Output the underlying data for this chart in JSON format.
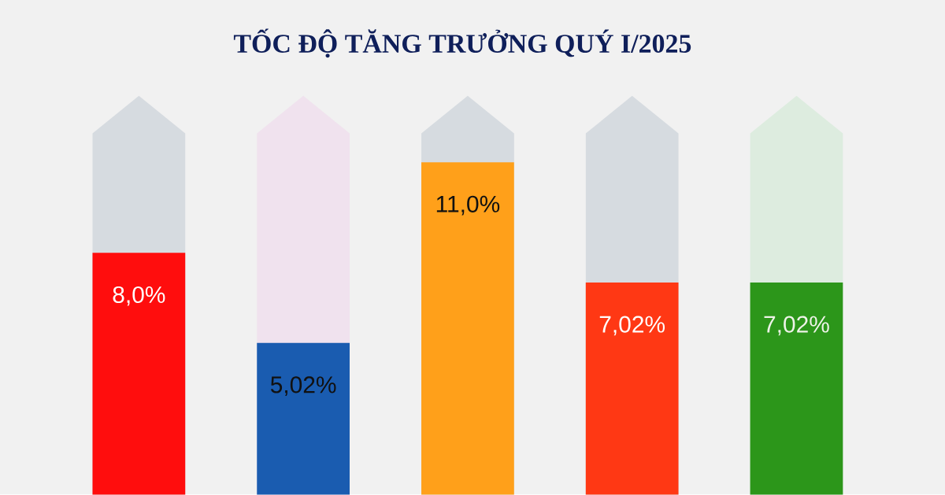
{
  "chart_data": {
    "type": "bar",
    "title": "TỐC ĐỘ TĂNG TRƯỞNG QUÝ I/2025",
    "categories": [
      null,
      null,
      null,
      null,
      null
    ],
    "values": [
      8.0,
      5.02,
      11.0,
      7.02,
      7.02
    ],
    "colors": [
      "#ff0d0d",
      "#1a5cb0",
      "#ffa01a",
      "#ff3814",
      "#2c961a"
    ],
    "value_labels": [
      "8,0%",
      "5,02%",
      "11,0%",
      "7,02%",
      "7,02%"
    ],
    "ylim": [
      0,
      13.2
    ]
  }
}
